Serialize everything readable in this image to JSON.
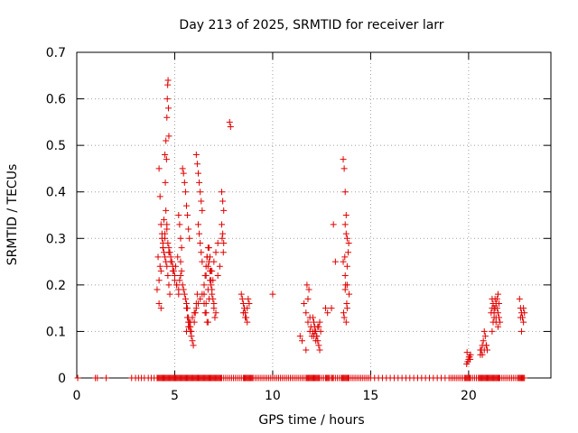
{
  "chart_data": {
    "type": "scatter",
    "title": "Day 213 of 2025, SRMTID for receiver larr",
    "xlabel": "GPS time / hours",
    "ylabel": "SRMTID / TECUs",
    "xlim": [
      0,
      24.2
    ],
    "ylim": [
      0,
      0.7
    ],
    "grid": true,
    "xticks": [
      0,
      5,
      10,
      15,
      20
    ],
    "xtick_labels": [
      "0",
      "5",
      "10",
      "15",
      "20"
    ],
    "yticks": [
      0,
      0.1,
      0.2,
      0.3,
      0.4,
      0.5,
      0.6,
      0.7
    ],
    "ytick_labels": [
      "0",
      "0.1",
      "0.2",
      "0.3",
      "0.4",
      "0.5",
      "0.6",
      "0.7"
    ],
    "marker": "+",
    "color": "#e00000",
    "series": [
      {
        "name": "SRMTID",
        "x": [
          0.05,
          0.95,
          1.05,
          1.5,
          2.8,
          3.0,
          3.15,
          3.3,
          3.45,
          3.65,
          3.8,
          3.95,
          4.1,
          4.15,
          4.2,
          4.25,
          4.3,
          4.35,
          4.4,
          4.45,
          4.5,
          4.55,
          4.6,
          4.65,
          4.7,
          4.75,
          4.8,
          4.85,
          4.9,
          4.95,
          5.0,
          5.05,
          5.1,
          5.15,
          5.2,
          5.25,
          5.3,
          5.35,
          5.4,
          5.45,
          5.5,
          5.55,
          5.6,
          5.65,
          5.7,
          5.75,
          5.8,
          5.85,
          5.9,
          5.95,
          6.0,
          6.05,
          6.1,
          6.15,
          6.2,
          6.25,
          6.3,
          6.35,
          6.4,
          6.45,
          6.5,
          6.55,
          6.6,
          6.65,
          6.7,
          6.75,
          6.8,
          6.85,
          6.9,
          6.95,
          7.0,
          7.05,
          7.1,
          7.15,
          7.2,
          7.25,
          7.3,
          7.35,
          7.4,
          7.5,
          7.6,
          7.7,
          7.8,
          7.9,
          8.0,
          8.1,
          8.2,
          8.3,
          8.4,
          8.5,
          8.55,
          8.6,
          8.65,
          8.7,
          8.75,
          8.8,
          8.85,
          8.9,
          8.95,
          9.0,
          9.1,
          9.2,
          9.3,
          9.4,
          9.5,
          9.6,
          9.7,
          9.8,
          9.9,
          10.0,
          10.1,
          10.2,
          10.3,
          10.4,
          10.5,
          10.6,
          10.7,
          10.8,
          10.9,
          11.0,
          11.1,
          11.2,
          11.3,
          11.4,
          11.5,
          11.6,
          11.7,
          11.75,
          11.8,
          11.85,
          11.9,
          11.95,
          12.0,
          12.05,
          12.1,
          12.15,
          12.2,
          12.25,
          12.3,
          12.35,
          12.4,
          12.5,
          12.6,
          12.7,
          12.75,
          12.8,
          12.85,
          12.9,
          13.0,
          13.05,
          13.1,
          13.2,
          13.3,
          13.4,
          13.5,
          13.55,
          13.6,
          13.65,
          13.7,
          13.75,
          13.8,
          13.85,
          13.9,
          14.0,
          14.1,
          14.2,
          14.3,
          14.4,
          14.5,
          14.6,
          14.7,
          14.8,
          14.9,
          15.0,
          15.2,
          15.4,
          15.6,
          15.8,
          16.0,
          16.2,
          16.4,
          16.6,
          16.8,
          17.0,
          17.2,
          17.4,
          17.6,
          17.8,
          18.0,
          18.2,
          18.4,
          18.6,
          18.8,
          19.0,
          19.1,
          19.2,
          19.3,
          19.4,
          19.5,
          19.6,
          19.7,
          19.8,
          19.85,
          19.9,
          19.95,
          20.0,
          20.05,
          20.1,
          20.2,
          20.3,
          20.4,
          20.5,
          20.55,
          20.6,
          20.65,
          20.7,
          20.75,
          20.8,
          20.85,
          20.9,
          20.95,
          21.0,
          21.05,
          21.1,
          21.15,
          21.2,
          21.25,
          21.3,
          21.35,
          21.4,
          21.45,
          21.5,
          21.55,
          21.6,
          21.7,
          21.8,
          21.9,
          22.0,
          22.1,
          22.2,
          22.3,
          22.4,
          22.5,
          22.55,
          22.6,
          22.65,
          22.7,
          22.75,
          22.8,
          22.85,
          4.2,
          4.25,
          4.3,
          4.35,
          4.4,
          4.45,
          4.5,
          4.55,
          4.6,
          4.65,
          4.7,
          4.75,
          4.2,
          4.3,
          4.4,
          4.5,
          4.6,
          4.7,
          4.8,
          4.9,
          5.0,
          5.1,
          5.2,
          5.3,
          4.15,
          4.25,
          4.35,
          4.45,
          4.55,
          4.65,
          4.75,
          4.85,
          4.95,
          5.05,
          5.15,
          5.25,
          4.1,
          4.2,
          4.3,
          4.4,
          4.5,
          4.6,
          4.7,
          4.8,
          4.9,
          5.0,
          5.1,
          5.2,
          4.5,
          4.55,
          4.6,
          4.62,
          4.64,
          4.66,
          4.68,
          4.7,
          4.52,
          4.58,
          5.2,
          5.25,
          5.3,
          5.35,
          5.4,
          5.45,
          5.5,
          5.55,
          5.6,
          5.65,
          5.7,
          5.75,
          5.3,
          5.35,
          5.4,
          5.45,
          5.5,
          5.55,
          5.6,
          5.65,
          5.7,
          5.75,
          5.8,
          5.85,
          5.6,
          5.65,
          5.7,
          5.75,
          5.8,
          5.85,
          5.9,
          5.95,
          6.0,
          6.05,
          6.1,
          6.15,
          5.6,
          5.7,
          5.8,
          5.9,
          6.0,
          6.1,
          6.2,
          6.3,
          6.4,
          6.5,
          6.6,
          6.7,
          6.1,
          6.15,
          6.2,
          6.25,
          6.3,
          6.35,
          6.4,
          6.2,
          6.25,
          6.3,
          6.35,
          6.4,
          6.5,
          6.55,
          6.6,
          6.65,
          6.7,
          6.75,
          6.8,
          6.85,
          6.9,
          6.95,
          7.0,
          7.05,
          6.5,
          6.6,
          6.7,
          6.8,
          6.9,
          7.0,
          7.1,
          7.2,
          6.55,
          6.65,
          6.75,
          6.85,
          6.6,
          6.7,
          6.8,
          6.9,
          7.0,
          7.1,
          7.2,
          7.3,
          6.65,
          6.75,
          6.85,
          6.95,
          7.4,
          7.45,
          7.5,
          7.4,
          7.45,
          7.5,
          7.42,
          7.48,
          7.8,
          7.85,
          8.4,
          8.45,
          8.5,
          8.55,
          8.6,
          8.65,
          8.7,
          8.75,
          8.5,
          8.6,
          8.7,
          8.8,
          11.6,
          11.7,
          11.8,
          11.9,
          12.0,
          11.7,
          11.8,
          11.9,
          11.75,
          11.85,
          11.95,
          12.05,
          12.1,
          12.15,
          12.2,
          12.25,
          12.3,
          12.35,
          12.4,
          12.1,
          12.2,
          12.3,
          12.4,
          12.45,
          12.05,
          12.15,
          12.25,
          12.35,
          11.4,
          11.5,
          10.0,
          12.7,
          12.8,
          13.1,
          13.0,
          13.2,
          13.6,
          13.65,
          13.7,
          13.75,
          13.8,
          13.85,
          13.6,
          13.7,
          13.8,
          13.9,
          13.65,
          13.75,
          13.7,
          13.75,
          13.8,
          13.72,
          13.78,
          13.62,
          13.68,
          13.88,
          13.7,
          13.8,
          19.9,
          19.95,
          20.0,
          20.05,
          20.1,
          19.92,
          20.02,
          20.08,
          20.6,
          20.65,
          20.7,
          20.75,
          20.8,
          20.85,
          20.9,
          20.6,
          20.7,
          20.8,
          20.9,
          20.95,
          21.2,
          21.25,
          21.3,
          21.35,
          21.4,
          21.45,
          21.5,
          21.55,
          21.2,
          21.3,
          21.4,
          21.5,
          21.15,
          21.25,
          21.35,
          21.45,
          21.55,
          21.6,
          21.2,
          21.3,
          21.4,
          21.5,
          22.6,
          22.65,
          22.7,
          22.75,
          22.8,
          22.85,
          22.7,
          22.75,
          22.8,
          22.65
        ],
        "y": [
          0,
          0,
          0,
          0,
          0,
          0,
          0,
          0,
          0,
          0,
          0,
          0,
          0,
          0,
          0,
          0,
          0,
          0,
          0,
          0,
          0,
          0,
          0,
          0,
          0,
          0,
          0,
          0,
          0,
          0,
          0,
          0,
          0,
          0,
          0,
          0,
          0,
          0,
          0,
          0,
          0,
          0,
          0,
          0,
          0,
          0,
          0,
          0,
          0,
          0,
          0,
          0,
          0,
          0,
          0,
          0,
          0,
          0,
          0,
          0,
          0,
          0,
          0,
          0,
          0,
          0,
          0,
          0,
          0,
          0,
          0,
          0,
          0,
          0,
          0,
          0,
          0,
          0,
          0,
          0,
          0,
          0,
          0,
          0,
          0,
          0,
          0,
          0,
          0,
          0,
          0,
          0,
          0,
          0,
          0,
          0,
          0,
          0,
          0,
          0,
          0,
          0,
          0,
          0,
          0,
          0,
          0,
          0,
          0,
          0,
          0,
          0,
          0,
          0,
          0,
          0,
          0,
          0,
          0,
          0,
          0,
          0,
          0,
          0,
          0,
          0,
          0,
          0,
          0,
          0,
          0,
          0,
          0,
          0,
          0,
          0,
          0,
          0,
          0,
          0,
          0,
          0,
          0,
          0,
          0,
          0,
          0,
          0,
          0,
          0,
          0,
          0,
          0,
          0,
          0,
          0,
          0,
          0,
          0,
          0,
          0,
          0,
          0,
          0,
          0,
          0,
          0,
          0,
          0,
          0,
          0,
          0,
          0,
          0,
          0,
          0,
          0,
          0,
          0,
          0,
          0,
          0,
          0,
          0,
          0,
          0,
          0,
          0,
          0,
          0,
          0,
          0,
          0,
          0,
          0,
          0,
          0,
          0,
          0,
          0,
          0,
          0,
          0,
          0,
          0,
          0,
          0,
          0,
          0,
          0,
          0,
          0,
          0,
          0,
          0,
          0,
          0,
          0,
          0,
          0,
          0,
          0,
          0,
          0,
          0,
          0,
          0,
          0,
          0,
          0,
          0,
          0,
          0,
          0,
          0,
          0,
          0,
          0,
          0,
          0,
          0,
          0,
          0,
          0,
          0,
          0,
          0,
          0,
          0,
          0,
          0.45,
          0.39,
          0.33,
          0.31,
          0.29,
          0.27,
          0.26,
          0.25,
          0.24,
          0.22,
          0.2,
          0.18,
          0.16,
          0.15,
          0.28,
          0.3,
          0.32,
          0.27,
          0.25,
          0.23,
          0.21,
          0.2,
          0.19,
          0.22,
          0.26,
          0.24,
          0.3,
          0.34,
          0.36,
          0.29,
          0.27,
          0.25,
          0.23,
          0.24,
          0.26,
          0.21,
          0.19,
          0.21,
          0.23,
          0.28,
          0.31,
          0.33,
          0.28,
          0.26,
          0.24,
          0.22,
          0.2,
          0.18,
          0.48,
          0.51,
          0.56,
          0.6,
          0.63,
          0.64,
          0.58,
          0.52,
          0.42,
          0.47,
          0.35,
          0.33,
          0.3,
          0.28,
          0.45,
          0.44,
          0.42,
          0.4,
          0.37,
          0.35,
          0.32,
          0.3,
          0.25,
          0.23,
          0.2,
          0.19,
          0.18,
          0.17,
          0.16,
          0.15,
          0.13,
          0.12,
          0.11,
          0.1,
          0.15,
          0.13,
          0.12,
          0.11,
          0.1,
          0.09,
          0.08,
          0.07,
          0.12,
          0.14,
          0.16,
          0.18,
          0.1,
          0.11,
          0.12,
          0.13,
          0.14,
          0.15,
          0.16,
          0.17,
          0.18,
          0.16,
          0.14,
          0.12,
          0.48,
          0.46,
          0.44,
          0.42,
          0.4,
          0.38,
          0.36,
          0.33,
          0.31,
          0.29,
          0.27,
          0.25,
          0.2,
          0.22,
          0.24,
          0.26,
          0.28,
          0.25,
          0.23,
          0.21,
          0.19,
          0.17,
          0.15,
          0.13,
          0.18,
          0.16,
          0.19,
          0.21,
          0.23,
          0.25,
          0.27,
          0.29,
          0.14,
          0.12,
          0.17,
          0.2,
          0.22,
          0.24,
          0.26,
          0.18,
          0.16,
          0.14,
          0.22,
          0.24,
          0.26,
          0.28,
          0.23,
          0.21,
          0.4,
          0.38,
          0.36,
          0.33,
          0.31,
          0.29,
          0.3,
          0.27,
          0.55,
          0.54,
          0.18,
          0.17,
          0.16,
          0.15,
          0.14,
          0.13,
          0.12,
          0.17,
          0.14,
          0.13,
          0.15,
          0.16,
          0.16,
          0.14,
          0.12,
          0.1,
          0.09,
          0.06,
          0.17,
          0.13,
          0.2,
          0.19,
          0.11,
          0.1,
          0.12,
          0.11,
          0.1,
          0.09,
          0.08,
          0.07,
          0.06,
          0.09,
          0.08,
          0.11,
          0.12,
          0.1,
          0.13,
          0.1,
          0.09,
          0.11,
          0.09,
          0.08,
          0.18,
          0.15,
          0.14,
          0.33,
          0.15,
          0.25,
          0.47,
          0.45,
          0.4,
          0.35,
          0.3,
          0.27,
          0.25,
          0.22,
          0.2,
          0.18,
          0.13,
          0.12,
          0.33,
          0.31,
          0.24,
          0.2,
          0.16,
          0.14,
          0.26,
          0.29,
          0.19,
          0.15,
          0.03,
          0.035,
          0.04,
          0.045,
          0.05,
          0.055,
          0.045,
          0.04,
          0.05,
          0.06,
          0.07,
          0.08,
          0.1,
          0.09,
          0.07,
          0.06,
          0.05,
          0.06,
          0.07,
          0.06,
          0.1,
          0.12,
          0.14,
          0.15,
          0.16,
          0.17,
          0.18,
          0.16,
          0.15,
          0.13,
          0.12,
          0.11,
          0.14,
          0.16,
          0.17,
          0.15,
          0.13,
          0.12,
          0.17,
          0.15,
          0.13,
          0.14,
          0.17,
          0.15,
          0.14,
          0.13,
          0.12,
          0.14,
          0.1,
          0.13,
          0.15,
          0.13
        ]
      }
    ]
  }
}
